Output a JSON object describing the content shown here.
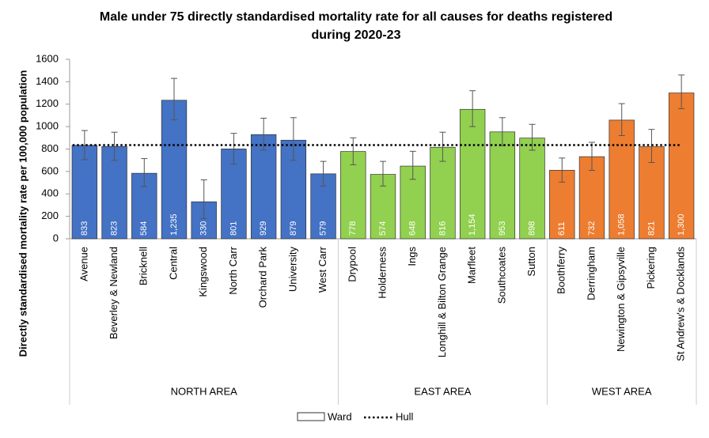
{
  "chart_data": {
    "type": "bar",
    "title": [
      "Male under 75 directly standardised mortality rate for all causes for deaths registered",
      "during 2020-23"
    ],
    "y_label": "Directly standardised mortality rate per 100,000 population",
    "ylim": [
      0,
      1600
    ],
    "yticks": [
      0,
      200,
      400,
      600,
      800,
      1000,
      1200,
      1400,
      1600
    ],
    "groups": [
      {
        "name": "NORTH AREA",
        "color": "#4472c4",
        "categories": [
          "Avenue",
          "Beverley & Newland",
          "Bricknell",
          "Central",
          "Kingswood",
          "North Carr",
          "Orchard Park",
          "University",
          "West Carr"
        ]
      },
      {
        "name": "EAST AREA",
        "color": "#92d050",
        "categories": [
          "Drypool",
          "Holderness",
          "Ings",
          "Longhill & Bilton Grange",
          "Marfleet",
          "Southcoates",
          "Sutton"
        ]
      },
      {
        "name": "WEST AREA",
        "color": "#ed7d31",
        "categories": [
          "Boothferry",
          "Derringham",
          "Newington & Gipsyville",
          "Pickering",
          "St Andrew's & Docklands"
        ]
      }
    ],
    "series": [
      {
        "name": "Ward",
        "values": [
          833,
          823,
          584,
          1235,
          330,
          801,
          929,
          879,
          579,
          778,
          574,
          648,
          816,
          1154,
          953,
          898,
          611,
          732,
          1058,
          821,
          1300
        ],
        "value_labels": [
          "833",
          "823",
          "584",
          "1,235",
          "330",
          "801",
          "929",
          "879",
          "579",
          "778",
          "574",
          "648",
          "816",
          "1,154",
          "953",
          "898",
          "611",
          "732",
          "1,058",
          "821",
          "1,300"
        ],
        "lower": [
          705,
          700,
          465,
          1060,
          180,
          665,
          790,
          700,
          470,
          660,
          470,
          530,
          690,
          1000,
          830,
          790,
          505,
          610,
          920,
          680,
          1160
        ],
        "upper": [
          965,
          950,
          715,
          1430,
          525,
          940,
          1075,
          1080,
          690,
          900,
          690,
          780,
          950,
          1320,
          1080,
          1020,
          720,
          860,
          1205,
          975,
          1460
        ]
      },
      {
        "name": "Hull",
        "value": 835,
        "color": "#000000"
      }
    ]
  }
}
